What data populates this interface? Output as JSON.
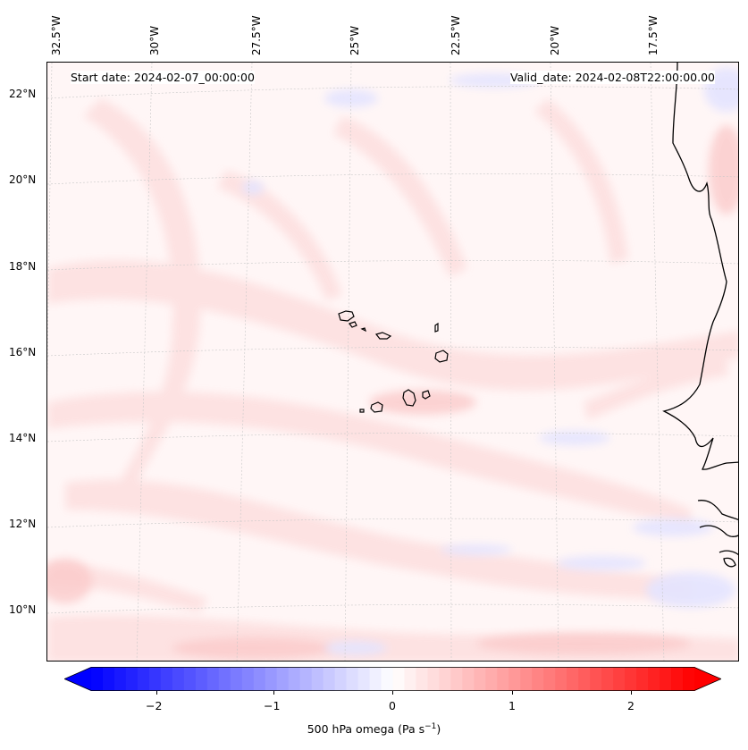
{
  "map": {
    "start_date": "Start date: 2024-02-07_00:00:00",
    "valid_date": "Valid_date: 2024-02-08T22:00:00.00",
    "longitude_labels": [
      "32.5°W",
      "30°W",
      "27.5°W",
      "25°W",
      "22.5°W",
      "20°W",
      "17.5°W"
    ],
    "latitude_labels": [
      "22°N",
      "20°N",
      "18°N",
      "16°N",
      "14°N",
      "12°N",
      "10°N"
    ],
    "field_colors": {
      "pale_red": "#fde2e2",
      "light_red": "#fbd0d0",
      "pale_blue": "#e6e6ff",
      "coast": "#000000"
    }
  },
  "colorbar": {
    "title_main": "500 hPa omega (Pa s",
    "title_exp": "−1",
    "title_end": ")",
    "tick_labels": [
      "−2",
      "−1",
      "0",
      "1",
      "2"
    ],
    "range": [
      -2.6,
      2.6
    ],
    "colormap": "bwr"
  }
}
